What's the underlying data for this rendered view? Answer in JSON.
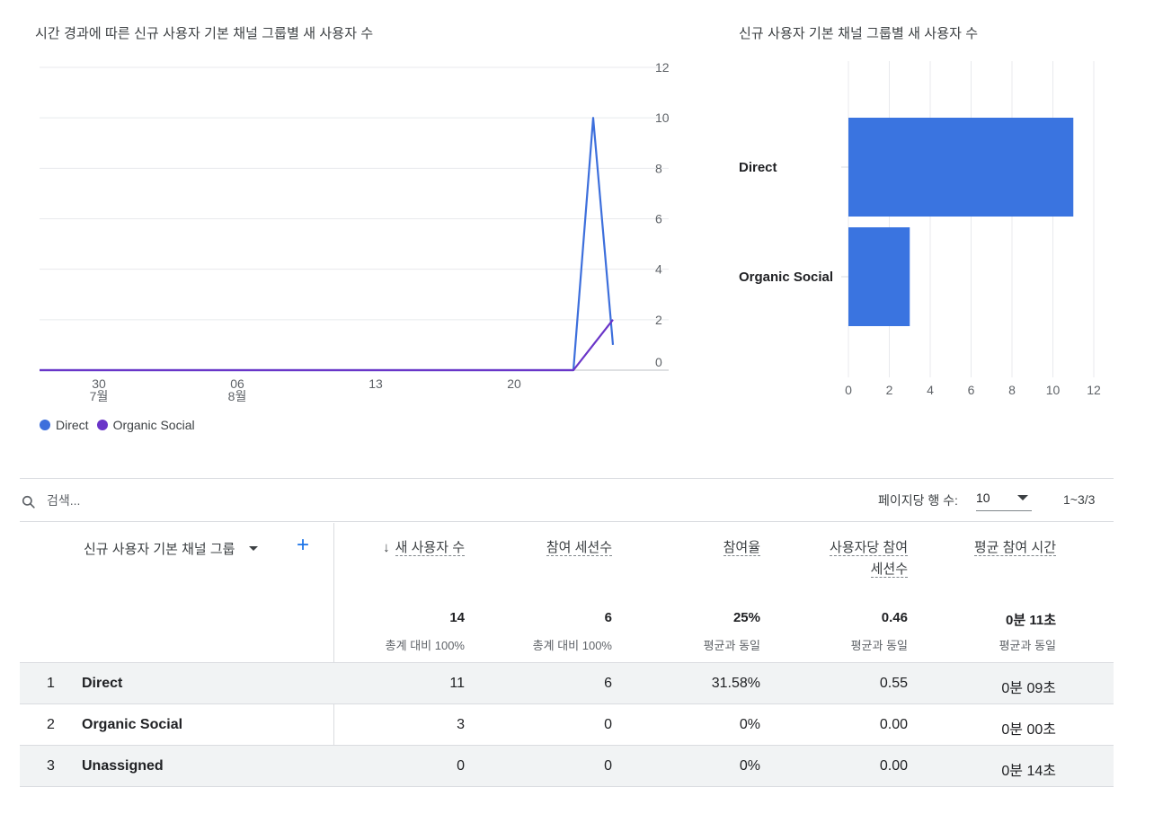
{
  "line_card": {
    "title": "시간 경과에 따른 신규 사용자 기본 채널 그룹별 새 사용자 수"
  },
  "bar_card": {
    "title": "신규 사용자 기본 채널 그룹별 새 사용자 수"
  },
  "chart_data": [
    {
      "type": "line",
      "title": "시간 경과에 따른 신규 사용자 기본 채널 그룹별 새 사용자 수",
      "xlim": [
        "2024-07-27",
        "2024-08-26"
      ],
      "x_ticks": [
        {
          "date": "2024-07-30",
          "label": "30",
          "sublabel": "7월"
        },
        {
          "date": "2024-08-06",
          "label": "06",
          "sublabel": "8월"
        },
        {
          "date": "2024-08-13",
          "label": "13",
          "sublabel": ""
        },
        {
          "date": "2024-08-20",
          "label": "20",
          "sublabel": ""
        }
      ],
      "y_ticks": [
        0,
        2,
        4,
        6,
        8,
        10,
        12
      ],
      "ylim": [
        0,
        12
      ],
      "grid": true,
      "series": [
        {
          "name": "Direct",
          "color": "#3d6fdc",
          "points": [
            {
              "x": "2024-07-27",
              "y": 0
            },
            {
              "x": "2024-08-23",
              "y": 0
            },
            {
              "x": "2024-08-24",
              "y": 10
            },
            {
              "x": "2024-08-25",
              "y": 1
            }
          ]
        },
        {
          "name": "Organic Social",
          "color": "#6a35c8",
          "points": [
            {
              "x": "2024-07-27",
              "y": 0
            },
            {
              "x": "2024-08-23",
              "y": 0
            },
            {
              "x": "2024-08-25",
              "y": 2
            }
          ]
        }
      ],
      "legend": "bottom-left"
    },
    {
      "type": "bar",
      "orientation": "horizontal",
      "title": "신규 사용자 기본 채널 그룹별 새 사용자 수",
      "categories": [
        "Direct",
        "Organic Social"
      ],
      "values": [
        11,
        3
      ],
      "color": "#3a74e0",
      "x_ticks": [
        0,
        2,
        4,
        6,
        8,
        10,
        12
      ],
      "xlim": [
        0,
        12
      ],
      "grid": true
    }
  ],
  "legend": [
    {
      "name": "Direct",
      "color": "#3d6fdc"
    },
    {
      "name": "Organic Social",
      "color": "#6a35c8"
    }
  ],
  "table": {
    "search_placeholder": "검색...",
    "rows_per_page_label": "페이지당 행 수:",
    "rows_per_page_value": "10",
    "pager_text": "1~3/3",
    "dimension_header": "신규 사용자 기본 채널 그룹",
    "add_label": "+",
    "columns": [
      {
        "label": "새 사용자 수",
        "total": "14",
        "total_sub": "총계 대비 100%"
      },
      {
        "label": "참여 세션수",
        "total": "6",
        "total_sub": "총계 대비 100%"
      },
      {
        "label": "참여율",
        "total": "25%",
        "total_sub": "평균과 동일"
      },
      {
        "label_line1": "사용자당 참여",
        "label_line2": "세션수",
        "total": "0.46",
        "total_sub": "평균과 동일"
      },
      {
        "label": "평균 참여 시간",
        "total": "0분 11초",
        "total_sub": "평균과 동일"
      }
    ],
    "rows": [
      {
        "num": "1",
        "name": "Direct",
        "cells": [
          "11",
          "6",
          "31.58%",
          "0.55",
          "0분 09초"
        ]
      },
      {
        "num": "2",
        "name": "Organic Social",
        "cells": [
          "3",
          "0",
          "0%",
          "0.00",
          "0분 00초"
        ]
      },
      {
        "num": "3",
        "name": "Unassigned",
        "cells": [
          "0",
          "0",
          "0%",
          "0.00",
          "0분 14초"
        ]
      }
    ]
  }
}
